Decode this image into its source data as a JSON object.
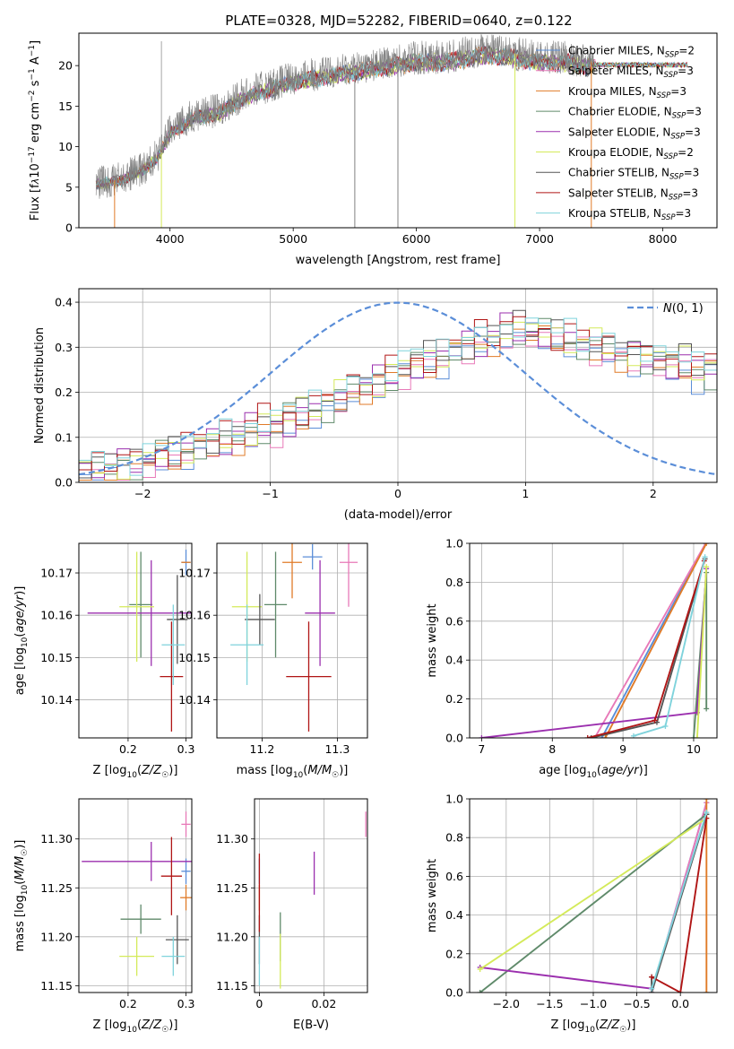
{
  "title": "PLATE=0328, MJD=52282, FIBERID=0640, z=0.122",
  "colors": {
    "chabrier_miles": "#5b8ed8",
    "salpeter_miles": "#e879b8",
    "kroupa_miles": "#e07b28",
    "chabrier_elodie": "#5f8a6a",
    "salpeter_elodie": "#9b2fae",
    "kroupa_elodie": "#d4ea5a",
    "chabrier_stelib": "#555555",
    "salpeter_stelib": "#b01515",
    "kroupa_stelib": "#7fd3dc",
    "data": "#808080",
    "normal": "#5b8ed8"
  },
  "legend_spectrum": [
    "Chabrier MILES, N_SSP=2",
    "Salpeter MILES, N_SSP=3",
    "Kroupa MILES, N_SSP=3",
    "Chabrier ELODIE, N_SSP=3",
    "Salpeter ELODIE, N_SSP=3",
    "Kroupa ELODIE, N_SSP=2",
    "Chabrier STELIB, N_SSP=3",
    "Salpeter STELIB, N_SSP=3",
    "Kroupa STELIB, N_SSP=3"
  ],
  "chart_data": [
    {
      "type": "line",
      "xlabel": "wavelength [Angstrom, rest frame]",
      "ylabel": "Flux [f_λ 10^-17 erg cm^-2 s^-1 A^-1]",
      "xlim": [
        3260,
        8440
      ],
      "ylim": [
        0,
        24
      ],
      "xticks": [
        4000,
        5000,
        6000,
        7000,
        8000
      ],
      "yticks": [
        0,
        5,
        10,
        15,
        20
      ],
      "continuum": [
        [
          3400,
          5.5
        ],
        [
          3600,
          6.0
        ],
        [
          3800,
          7.5
        ],
        [
          3900,
          9.0
        ],
        [
          4000,
          12.0
        ],
        [
          4200,
          14.0
        ],
        [
          4400,
          14.5
        ],
        [
          4600,
          16.5
        ],
        [
          4800,
          17.5
        ],
        [
          5000,
          18.5
        ],
        [
          5200,
          19.0
        ],
        [
          5400,
          19.5
        ],
        [
          5600,
          20.0
        ],
        [
          5800,
          20.5
        ],
        [
          6000,
          21.0
        ],
        [
          6200,
          21.0
        ],
        [
          6400,
          21.5
        ],
        [
          6600,
          22.0
        ],
        [
          6800,
          21.5
        ],
        [
          7000,
          21.0
        ],
        [
          7200,
          21.0
        ],
        [
          7400,
          20.5
        ]
      ],
      "data_x_range": [
        3400,
        7450
      ],
      "model_x_range": [
        3400,
        8200
      ]
    },
    {
      "type": "bar",
      "xlabel": "(data-model)/error",
      "ylabel": "Normed distribution",
      "xlim": [
        -2.5,
        2.5
      ],
      "ylim": [
        0,
        0.43
      ],
      "xticks": [
        -2,
        -1,
        0,
        1,
        2
      ],
      "yticks": [
        0.0,
        0.1,
        0.2,
        0.3,
        0.4
      ],
      "legend": "N(0,1)",
      "bin_width": 0.1,
      "profile": [
        0.02,
        0.025,
        0.03,
        0.035,
        0.04,
        0.05,
        0.055,
        0.06,
        0.07,
        0.08,
        0.085,
        0.09,
        0.1,
        0.11,
        0.12,
        0.13,
        0.14,
        0.15,
        0.16,
        0.17,
        0.18,
        0.2,
        0.21,
        0.22,
        0.23,
        0.25,
        0.26,
        0.27,
        0.28,
        0.29,
        0.3,
        0.31,
        0.32,
        0.33,
        0.335,
        0.33,
        0.325,
        0.32,
        0.31,
        0.3,
        0.3,
        0.29,
        0.28,
        0.28,
        0.27,
        0.27,
        0.26,
        0.26,
        0.25,
        0.25
      ],
      "jitter": [
        0.5,
        -0.2,
        0.8,
        -0.6,
        0.3,
        0.9,
        -0.4,
        0.1,
        -0.8,
        0.6
      ]
    },
    {
      "type": "scatter",
      "xlabel": "Z [log10(Z/Z☉)]",
      "ylabel": "age  [log10(age/yr)]",
      "xlim": [
        0.115,
        0.31
      ],
      "ylim": [
        10.131,
        10.177
      ],
      "xticks": [
        0.2,
        0.3
      ],
      "yticks": [
        10.14,
        10.15,
        10.16,
        10.17
      ],
      "points": [
        {
          "x": 0.3,
          "y": 10.1725,
          "xerr": 0.008,
          "yerr": 0.003,
          "color": "chabrier_miles"
        },
        {
          "x": 0.3,
          "y": 10.1725,
          "xerr": 0.0,
          "yerr": 0.0,
          "color": "salpeter_miles"
        },
        {
          "x": 0.3,
          "y": 10.1725,
          "xerr": 0.008,
          "yerr": 0.0,
          "color": "kroupa_miles"
        },
        {
          "x": 0.222,
          "y": 10.1625,
          "xerr": 0.02,
          "yerr": 0.0125,
          "color": "chabrier_elodie"
        },
        {
          "x": 0.24,
          "y": 10.1605,
          "xerr": 0.11,
          "yerr": 0.0125,
          "color": "salpeter_elodie"
        },
        {
          "x": 0.215,
          "y": 10.162,
          "xerr": 0.03,
          "yerr": 0.013,
          "color": "kroupa_elodie"
        },
        {
          "x": 0.285,
          "y": 10.159,
          "xerr": 0.018,
          "yerr": 0.0105,
          "color": "chabrier_stelib"
        },
        {
          "x": 0.275,
          "y": 10.1455,
          "xerr": 0.02,
          "yerr": 0.013,
          "color": "salpeter_stelib"
        },
        {
          "x": 0.278,
          "y": 10.153,
          "xerr": 0.02,
          "yerr": 0.0095,
          "color": "kroupa_stelib"
        }
      ]
    },
    {
      "type": "scatter",
      "xlabel": "mass [log10(M/M☉)]",
      "ylabel": "",
      "xlim": [
        11.14,
        11.34
      ],
      "ylim": [
        10.131,
        10.177
      ],
      "xticks": [
        11.2,
        11.3
      ],
      "yticks": [
        10.14,
        10.15,
        10.16,
        10.17
      ],
      "points": [
        {
          "x": 11.267,
          "y": 10.1738,
          "xerr": 0.013,
          "yerr": 0.003,
          "color": "chabrier_miles"
        },
        {
          "x": 11.315,
          "y": 10.1725,
          "xerr": 0.012,
          "yerr": 0.0105,
          "color": "salpeter_miles"
        },
        {
          "x": 11.24,
          "y": 10.1725,
          "xerr": 0.013,
          "yerr": 0.0085,
          "color": "kroupa_miles"
        },
        {
          "x": 11.218,
          "y": 10.1625,
          "xerr": 0.015,
          "yerr": 0.0125,
          "color": "chabrier_elodie"
        },
        {
          "x": 11.277,
          "y": 10.1605,
          "xerr": 0.02,
          "yerr": 0.0125,
          "color": "salpeter_elodie"
        },
        {
          "x": 11.18,
          "y": 10.162,
          "xerr": 0.02,
          "yerr": 0.013,
          "color": "kroupa_elodie"
        },
        {
          "x": 11.197,
          "y": 10.159,
          "xerr": 0.02,
          "yerr": 0.006,
          "color": "chabrier_stelib"
        },
        {
          "x": 11.262,
          "y": 10.1455,
          "xerr": 0.03,
          "yerr": 0.013,
          "color": "salpeter_stelib"
        },
        {
          "x": 11.18,
          "y": 10.153,
          "xerr": 0.022,
          "yerr": 0.0095,
          "color": "kroupa_stelib"
        }
      ]
    },
    {
      "type": "line",
      "xlabel": "age  [log10(age/yr)]",
      "ylabel": "mass weight",
      "xlim": [
        6.83,
        10.33
      ],
      "ylim": [
        0,
        1
      ],
      "xticks": [
        7,
        8,
        9,
        10
      ],
      "yticks": [
        0.0,
        0.2,
        0.4,
        0.6,
        0.8,
        1.0
      ],
      "series": [
        {
          "color": "chabrier_miles",
          "x": [
            8.7,
            10.17
          ],
          "y": [
            0.0,
            1.0
          ]
        },
        {
          "color": "salpeter_miles",
          "x": [
            8.6,
            10.17
          ],
          "y": [
            0.0,
            1.0
          ]
        },
        {
          "color": "kroupa_miles",
          "x": [
            8.75,
            10.18
          ],
          "y": [
            0.0,
            1.0
          ]
        },
        {
          "color": "chabrier_elodie",
          "x": [
            10.0,
            10.18,
            10.18
          ],
          "y": [
            0.0,
            0.85,
            0.15
          ]
        },
        {
          "color": "salpeter_elodie",
          "x": [
            7.0,
            10.05,
            10.18
          ],
          "y": [
            0.0,
            0.13,
            0.87
          ]
        },
        {
          "color": "kroupa_elodie",
          "x": [
            10.05,
            10.18
          ],
          "y": [
            0.0,
            0.88
          ]
        },
        {
          "color": "chabrier_stelib",
          "x": [
            8.55,
            9.48,
            10.16
          ],
          "y": [
            0.0,
            0.08,
            0.92
          ]
        },
        {
          "color": "salpeter_stelib",
          "x": [
            8.5,
            9.45,
            10.15
          ],
          "y": [
            0.0,
            0.09,
            0.91
          ]
        },
        {
          "color": "kroupa_stelib",
          "x": [
            9.15,
            9.6,
            10.16
          ],
          "y": [
            0.01,
            0.06,
            0.93
          ]
        }
      ]
    },
    {
      "type": "scatter",
      "xlabel": "Z [log10(Z/Z☉)]",
      "ylabel": "mass [log10(M/M☉)]",
      "xlim": [
        0.115,
        0.31
      ],
      "ylim": [
        11.143,
        11.341
      ],
      "xticks": [
        0.2,
        0.3
      ],
      "yticks": [
        11.15,
        11.2,
        11.25,
        11.3
      ],
      "points": [
        {
          "x": 0.3,
          "y": 11.267,
          "xerr": 0.008,
          "yerr": 0.013,
          "color": "chabrier_miles"
        },
        {
          "x": 0.3,
          "y": 11.315,
          "xerr": 0.008,
          "yerr": 0.013,
          "color": "salpeter_miles"
        },
        {
          "x": 0.3,
          "y": 11.24,
          "xerr": 0.01,
          "yerr": 0.013,
          "color": "kroupa_miles"
        },
        {
          "x": 0.222,
          "y": 11.218,
          "xerr": 0.035,
          "yerr": 0.015,
          "color": "chabrier_elodie"
        },
        {
          "x": 0.24,
          "y": 11.277,
          "xerr": 0.12,
          "yerr": 0.02,
          "color": "salpeter_elodie"
        },
        {
          "x": 0.215,
          "y": 11.18,
          "xerr": 0.03,
          "yerr": 0.02,
          "color": "kroupa_elodie"
        },
        {
          "x": 0.285,
          "y": 11.197,
          "xerr": 0.02,
          "yerr": 0.025,
          "color": "chabrier_stelib"
        },
        {
          "x": 0.275,
          "y": 11.262,
          "xerr": 0.018,
          "yerr": 0.04,
          "color": "salpeter_stelib"
        },
        {
          "x": 0.278,
          "y": 11.18,
          "xerr": 0.02,
          "yerr": 0.02,
          "color": "kroupa_stelib"
        }
      ]
    },
    {
      "type": "scatter",
      "xlabel": "E(B-V)",
      "ylabel": "",
      "xlim": [
        -0.0015,
        0.0335
      ],
      "ylim": [
        11.143,
        11.341
      ],
      "xticks": [
        0.0,
        0.02
      ],
      "yticks": [
        11.15,
        11.2,
        11.25,
        11.3
      ],
      "points": [
        {
          "x": 0.0,
          "y": 11.267,
          "xerr": 0.0,
          "yerr": 0.013,
          "color": "chabrier_miles"
        },
        {
          "x": 0.033,
          "y": 11.315,
          "xerr": 0.0,
          "yerr": 0.013,
          "color": "salpeter_miles"
        },
        {
          "x": 0.0,
          "y": 11.24,
          "xerr": 0.0,
          "yerr": 0.013,
          "color": "kroupa_miles"
        },
        {
          "x": 0.0065,
          "y": 11.2,
          "xerr": 0.0,
          "yerr": 0.025,
          "color": "chabrier_elodie"
        },
        {
          "x": 0.017,
          "y": 11.265,
          "xerr": 0.0,
          "yerr": 0.022,
          "color": "salpeter_elodie"
        },
        {
          "x": 0.0065,
          "y": 11.175,
          "xerr": 0.0,
          "yerr": 0.028,
          "color": "kroupa_elodie"
        },
        {
          "x": 0.0,
          "y": 11.197,
          "xerr": 0.0,
          "yerr": 0.025,
          "color": "chabrier_stelib"
        },
        {
          "x": 0.0,
          "y": 11.245,
          "xerr": 0.0,
          "yerr": 0.04,
          "color": "salpeter_stelib"
        },
        {
          "x": 0.0,
          "y": 11.175,
          "xerr": 0.0,
          "yerr": 0.025,
          "color": "kroupa_stelib"
        }
      ]
    },
    {
      "type": "line",
      "xlabel": "Z [log10(Z/Z☉)]",
      "ylabel": "mass weight",
      "xlim": [
        -2.42,
        0.42
      ],
      "ylim": [
        0,
        1
      ],
      "xticks": [
        -2.0,
        -1.5,
        -1.0,
        -0.5,
        0.0
      ],
      "yticks": [
        0.0,
        0.2,
        0.4,
        0.6,
        0.8,
        1.0
      ],
      "series": [
        {
          "color": "chabrier_miles",
          "x": [
            -0.33,
            0.3
          ],
          "y": [
            0.0,
            0.98
          ]
        },
        {
          "color": "salpeter_miles",
          "x": [
            -0.33,
            0.3
          ],
          "y": [
            0.0,
            0.98
          ]
        },
        {
          "color": "kroupa_miles",
          "x": [
            0.3,
            0.3
          ],
          "y": [
            0.0,
            1.0
          ]
        },
        {
          "color": "chabrier_elodie",
          "x": [
            -2.3,
            0.3
          ],
          "y": [
            0.0,
            0.92
          ]
        },
        {
          "color": "salpeter_elodie",
          "x": [
            -2.3,
            -0.33
          ],
          "y": [
            0.13,
            0.02
          ]
        },
        {
          "color": "kroupa_elodie",
          "x": [
            -2.3,
            0.3
          ],
          "y": [
            0.12,
            0.9
          ]
        },
        {
          "color": "chabrier_stelib",
          "x": [
            -0.33,
            -0.33,
            0.3
          ],
          "y": [
            0.08,
            0.0,
            0.92
          ]
        },
        {
          "color": "salpeter_stelib",
          "x": [
            -0.33,
            0.0,
            0.3
          ],
          "y": [
            0.08,
            0.0,
            0.9
          ]
        },
        {
          "color": "kroupa_stelib",
          "x": [
            -0.33,
            0.3
          ],
          "y": [
            0.02,
            0.93
          ]
        }
      ]
    }
  ]
}
